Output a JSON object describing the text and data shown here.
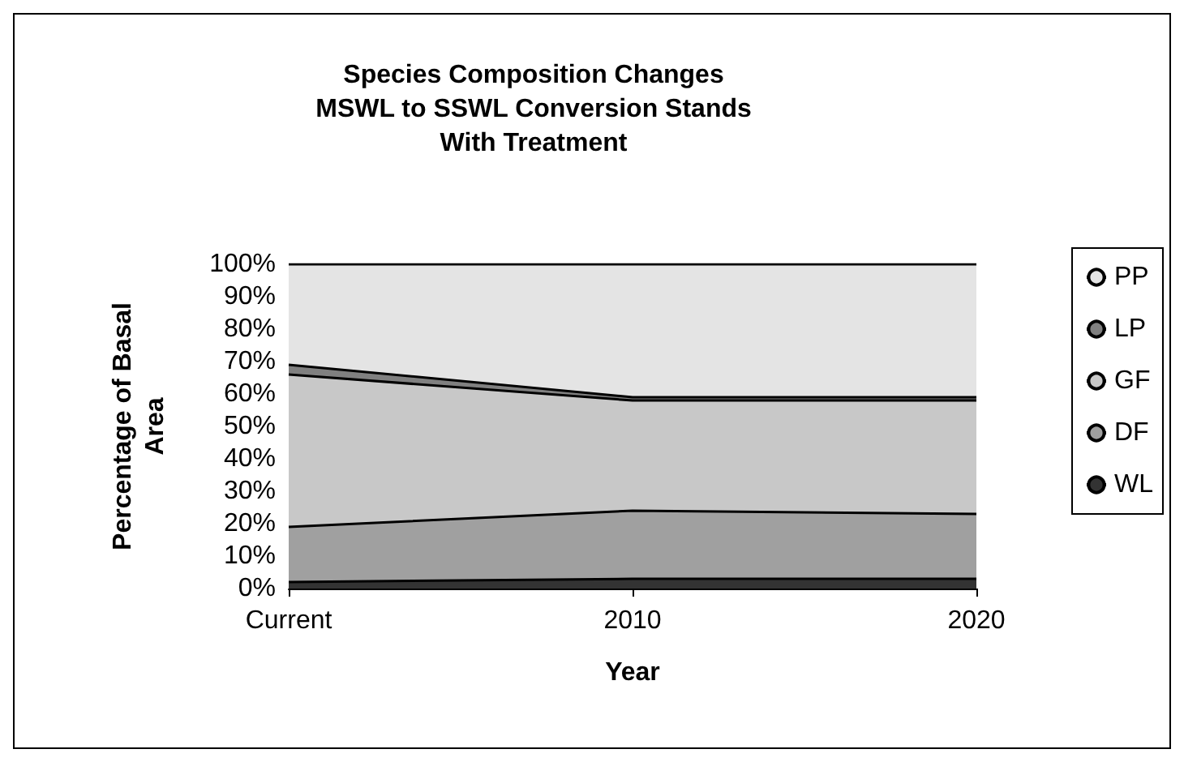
{
  "chart_data": {
    "type": "area",
    "stacked": true,
    "title": "Species Composition Changes\nMSWL to SSWL Conversion Stands\nWith Treatment",
    "xlabel": "Year",
    "ylabel": "Percentage of Basal\nArea",
    "categories": [
      "Current",
      "2010",
      "2020"
    ],
    "series": [
      {
        "name": "WL",
        "color": "#333333",
        "values": [
          2,
          3,
          3
        ]
      },
      {
        "name": "DF",
        "color": "#a0a0a0",
        "values": [
          17,
          21,
          20
        ]
      },
      {
        "name": "GF",
        "color": "#c8c8c8",
        "values": [
          47,
          34,
          35
        ]
      },
      {
        "name": "LP",
        "color": "#808080",
        "values": [
          3,
          1,
          1
        ]
      },
      {
        "name": "PP",
        "color": "#e4e4e4",
        "values": [
          31,
          41,
          41
        ]
      }
    ],
    "ylim": [
      0,
      100
    ],
    "yticks": [
      {
        "value": 0,
        "label": "0%"
      },
      {
        "value": 10,
        "label": "10%"
      },
      {
        "value": 20,
        "label": "20%"
      },
      {
        "value": 30,
        "label": "30%"
      },
      {
        "value": 40,
        "label": "40%"
      },
      {
        "value": 50,
        "label": "50%"
      },
      {
        "value": 60,
        "label": "60%"
      },
      {
        "value": 70,
        "label": "70%"
      },
      {
        "value": 80,
        "label": "80%"
      },
      {
        "value": 90,
        "label": "90%"
      },
      {
        "value": 100,
        "label": "100%"
      }
    ],
    "grid": false,
    "legend": "right"
  }
}
